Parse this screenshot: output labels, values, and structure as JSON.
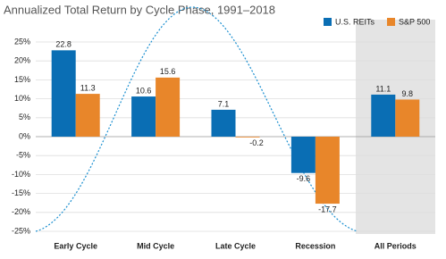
{
  "chart_data": {
    "type": "bar",
    "title": "Annualized Total Return by Cycle Phase, 1991–2018",
    "categories": [
      "Early Cycle",
      "Mid Cycle",
      "Late Cycle",
      "Recession",
      "All Periods"
    ],
    "series": [
      {
        "name": "U.S. REITs",
        "color": "#0a6eb4",
        "values": [
          22.8,
          10.6,
          7.1,
          -9.6,
          11.1
        ]
      },
      {
        "name": "S&P 500",
        "color": "#e8862a",
        "values": [
          11.3,
          15.6,
          -0.2,
          -17.7,
          9.8
        ]
      }
    ],
    "ylim": [
      -25,
      25
    ],
    "yticks": [
      {
        "value": -25,
        "label": "-25%"
      },
      {
        "value": -20,
        "label": "-20%"
      },
      {
        "value": -15,
        "label": "-15%"
      },
      {
        "value": -10,
        "label": "-10%"
      },
      {
        "value": -5,
        "label": "-5%"
      },
      {
        "value": 0,
        "label": "0%"
      },
      {
        "value": 5,
        "label": "5%"
      },
      {
        "value": 10,
        "label": "10%"
      },
      {
        "value": 15,
        "label": "15%"
      },
      {
        "value": 20,
        "label": "20%"
      },
      {
        "value": 25,
        "label": "25%"
      }
    ],
    "grid": true,
    "legend": "top-right"
  }
}
